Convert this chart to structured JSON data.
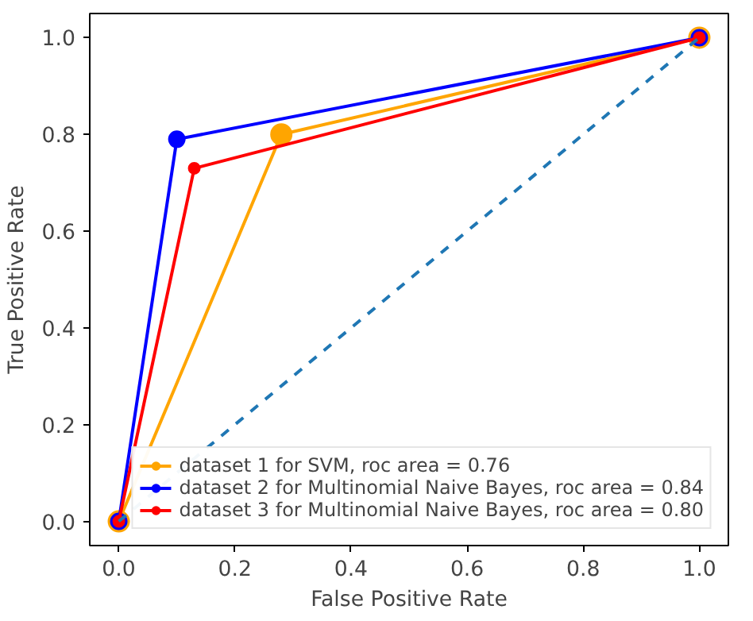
{
  "chart_data": {
    "type": "line",
    "xlabel": "False Positive Rate",
    "ylabel": "True Positive Rate",
    "xlim": [
      -0.05,
      1.05
    ],
    "ylim": [
      -0.05,
      1.05
    ],
    "xticks": [
      {
        "value": 0,
        "label": "0.0"
      },
      {
        "value": 0.2,
        "label": "0.2"
      },
      {
        "value": 0.4,
        "label": "0.4"
      },
      {
        "value": 0.6,
        "label": "0.6"
      },
      {
        "value": 0.8,
        "label": "0.8"
      },
      {
        "value": 1,
        "label": "1.0"
      }
    ],
    "yticks": [
      {
        "value": 0,
        "label": "0.0"
      },
      {
        "value": 0.2,
        "label": "0.2"
      },
      {
        "value": 0.4,
        "label": "0.4"
      },
      {
        "value": 0.6,
        "label": "0.6"
      },
      {
        "value": 0.8,
        "label": "0.8"
      },
      {
        "value": 1,
        "label": "1.0"
      }
    ],
    "marker": "circle",
    "legend": "bottom right",
    "series": [
      {
        "name": "dataset 1 for SVM, roc area = 0.76",
        "color": "#ffa500",
        "x": [
          0,
          0.28,
          1
        ],
        "values": [
          0,
          0.8,
          1
        ]
      },
      {
        "name": "dataset 2 for Multinomial Naive Bayes, roc area = 0.84",
        "color": "#0000ff",
        "x": [
          0,
          0.1,
          1
        ],
        "values": [
          0,
          0.79,
          1
        ]
      },
      {
        "name": "dataset 3 for Multinomial Naive Bayes, roc area = 0.80",
        "color": "#ff0000",
        "x": [
          0,
          0.13,
          1
        ],
        "values": [
          0,
          0.73,
          1
        ]
      },
      {
        "color": "#1f77b4",
        "x": [
          0,
          1
        ],
        "values": [
          0,
          1
        ],
        "line_style": "dashed",
        "marker": "none"
      }
    ]
  }
}
